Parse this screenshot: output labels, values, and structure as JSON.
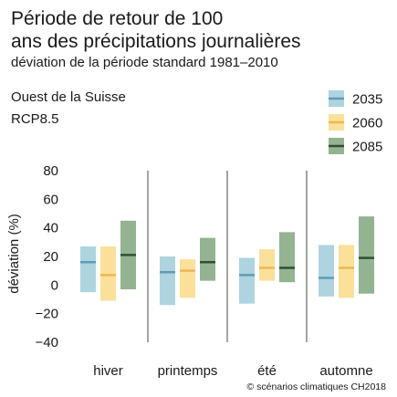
{
  "header": {
    "title_line1": "Période de retour de 100",
    "title_line2": "ans des précipitations journalières",
    "subtitle": "déviation de la période standard 1981–2010",
    "region": "Ouest de la Suisse",
    "scenario": "RCP8.5"
  },
  "footer": {
    "copyright": "© scénarios climatiques CH2018"
  },
  "chart_data": {
    "type": "range-bar",
    "ylabel": "déviation (%)",
    "ylim": [
      -40,
      80
    ],
    "yticks": [
      "80",
      "60",
      "40",
      "20",
      "0",
      "−20",
      "−40"
    ],
    "categories": [
      "hiver",
      "printemps",
      "été",
      "automne"
    ],
    "legend_position": "top-right",
    "series": [
      {
        "name": "2035",
        "fill": "#aed4e0",
        "median_color": "#5e9bb5",
        "low": [
          -5,
          -14,
          -13,
          -8
        ],
        "high": [
          27,
          20,
          19,
          28
        ],
        "median": [
          16,
          9,
          7,
          5
        ]
      },
      {
        "name": "2060",
        "fill": "#fbe09a",
        "median_color": "#ecb755",
        "low": [
          -11,
          -9,
          3,
          -9
        ],
        "high": [
          27,
          18,
          25,
          28
        ],
        "median": [
          7,
          10,
          12,
          12
        ]
      },
      {
        "name": "2085",
        "fill": "#93b391",
        "median_color": "#2f4f35",
        "low": [
          -3,
          3,
          2,
          -6
        ],
        "high": [
          45,
          33,
          37,
          48
        ],
        "median": [
          21,
          16,
          12,
          19
        ]
      }
    ]
  }
}
